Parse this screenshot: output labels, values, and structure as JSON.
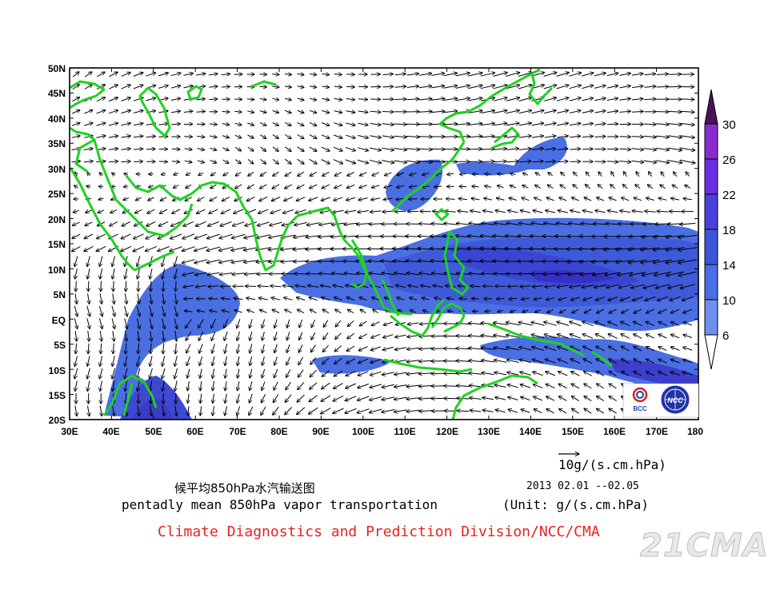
{
  "map": {
    "lat_labels": [
      "50N",
      "45N",
      "40N",
      "35N",
      "30N",
      "25N",
      "20N",
      "15N",
      "10N",
      "5N",
      "EQ",
      "5S",
      "10S",
      "15S",
      "20S"
    ],
    "lon_labels": [
      "30E",
      "40E",
      "50E",
      "60E",
      "70E",
      "80E",
      "90E",
      "100E",
      "110E",
      "120E",
      "130E",
      "140E",
      "150E",
      "160E",
      "170E",
      "180"
    ],
    "lat_range": [
      -20,
      50
    ],
    "lon_range": [
      30,
      180
    ],
    "colorbar": {
      "levels": [
        "30",
        "26",
        "22",
        "18",
        "14",
        "10",
        "6"
      ],
      "colors": [
        "#4a1259",
        "#8a2bd0",
        "#6a2ee0",
        "#4b3fdc",
        "#3d55da",
        "#4a6ee3",
        "#6f8ff0"
      ]
    },
    "land_color": "#1fd21f",
    "shade_color": "#3f63e0",
    "reference_vector": "10",
    "reference_unit": "g/(s.cm.hPa)"
  },
  "title_cn": "候平均850hPa水汽输送图",
  "title_en": "pentadly mean 850hPa vapor transportation",
  "date": "2013  02.01 --02.05",
  "unit": "(Unit: g/(s.cm.hPa)",
  "credit": "Climate Diagnostics and Prediction Division/NCC/CMA",
  "logos": {
    "bcc": "BCC",
    "ncc": "NCC"
  },
  "watermark": "21CMA"
}
